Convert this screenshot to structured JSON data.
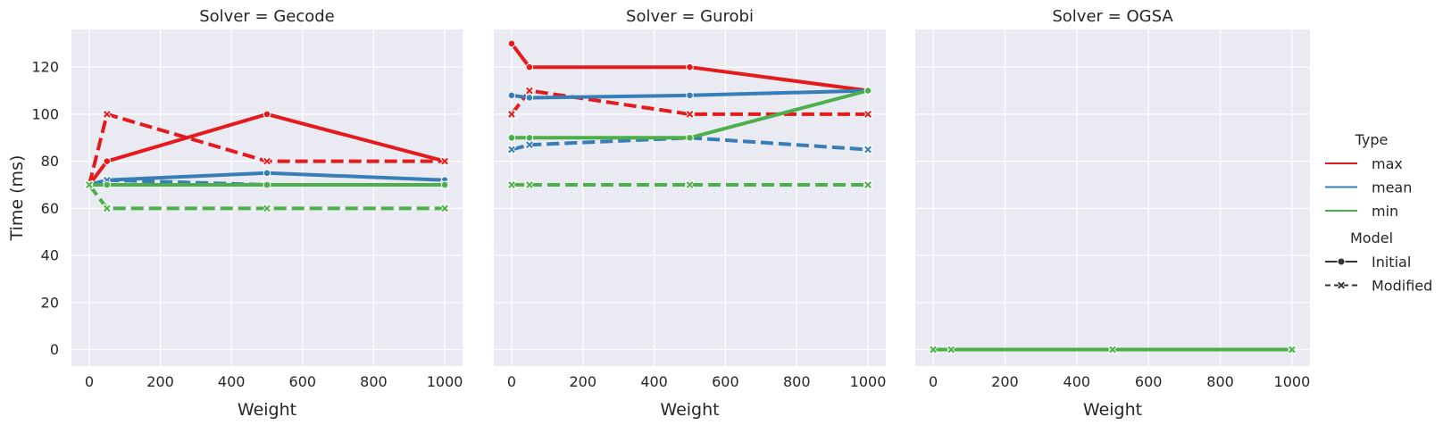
{
  "chart_data": {
    "type": "line",
    "ylabel": "Time (ms)",
    "xlabel": "Weight",
    "xlim": [
      -50,
      1050
    ],
    "ylim": [
      -7,
      136
    ],
    "x_ticks": [
      0,
      200,
      400,
      600,
      800,
      1000
    ],
    "y_ticks": [
      0,
      20,
      40,
      60,
      80,
      100,
      120
    ],
    "grid": true,
    "legend_placement": "right",
    "x": [
      0,
      50,
      500,
      1000
    ],
    "facets": [
      {
        "title": "Solver = Gecode",
        "series": [
          {
            "type": "max",
            "model": "Initial",
            "values": [
              70,
              80,
              100,
              80
            ]
          },
          {
            "type": "max",
            "model": "Modified",
            "values": [
              70,
              100,
              80,
              80
            ]
          },
          {
            "type": "mean",
            "model": "Initial",
            "values": [
              70,
              72,
              75,
              72
            ]
          },
          {
            "type": "mean",
            "model": "Modified",
            "values": [
              70,
              72,
              70,
              70
            ]
          },
          {
            "type": "min",
            "model": "Initial",
            "values": [
              70,
              70,
              70,
              70
            ]
          },
          {
            "type": "min",
            "model": "Modified",
            "values": [
              70,
              60,
              60,
              60
            ]
          }
        ]
      },
      {
        "title": "Solver = Gurobi",
        "series": [
          {
            "type": "max",
            "model": "Initial",
            "values": [
              130,
              120,
              120,
              110
            ]
          },
          {
            "type": "max",
            "model": "Modified",
            "values": [
              100,
              110,
              100,
              100
            ]
          },
          {
            "type": "mean",
            "model": "Initial",
            "values": [
              108,
              107,
              108,
              110
            ]
          },
          {
            "type": "mean",
            "model": "Modified",
            "values": [
              85,
              87,
              90,
              85
            ]
          },
          {
            "type": "min",
            "model": "Initial",
            "values": [
              90,
              90,
              90,
              110
            ]
          },
          {
            "type": "min",
            "model": "Modified",
            "values": [
              70,
              70,
              70,
              70
            ]
          }
        ]
      },
      {
        "title": "Solver = OGSA",
        "series": [
          {
            "type": "max",
            "model": "Initial",
            "values": [
              0,
              0,
              0,
              0
            ]
          },
          {
            "type": "max",
            "model": "Modified",
            "values": [
              0,
              0,
              0,
              0
            ]
          },
          {
            "type": "mean",
            "model": "Initial",
            "values": [
              0,
              0,
              0,
              0
            ]
          },
          {
            "type": "mean",
            "model": "Modified",
            "values": [
              0,
              0,
              0,
              0
            ]
          },
          {
            "type": "min",
            "model": "Initial",
            "values": [
              0,
              0,
              0,
              0
            ]
          },
          {
            "type": "min",
            "model": "Modified",
            "values": [
              0,
              0,
              0,
              0
            ]
          }
        ]
      }
    ],
    "legend": {
      "type_title": "Type",
      "types": [
        {
          "name": "max",
          "color": "#e41a1c"
        },
        {
          "name": "mean",
          "color": "#377eb8"
        },
        {
          "name": "min",
          "color": "#4daf4a"
        }
      ],
      "model_title": "Model",
      "models": [
        {
          "name": "Initial",
          "dash": "solid",
          "marker": "circle"
        },
        {
          "name": "Modified",
          "dash": "dashed",
          "marker": "x"
        }
      ]
    }
  }
}
